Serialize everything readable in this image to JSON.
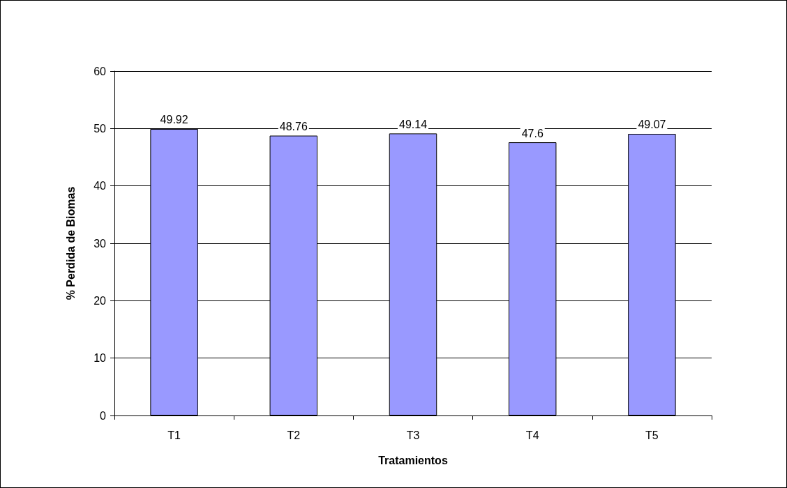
{
  "chart_data": {
    "type": "bar",
    "xlabel": "Tratamientos",
    "ylabel": "% Perdida de Biomas",
    "categories": [
      "T1",
      "T2",
      "T3",
      "T4",
      "T5"
    ],
    "values": [
      49.92,
      48.76,
      49.14,
      47.6,
      49.07
    ],
    "color": "#9999ff",
    "ylim": [
      0,
      60
    ],
    "yticks": [
      0,
      10,
      20,
      30,
      40,
      50,
      60
    ],
    "grid": "y",
    "data_labels": true
  }
}
